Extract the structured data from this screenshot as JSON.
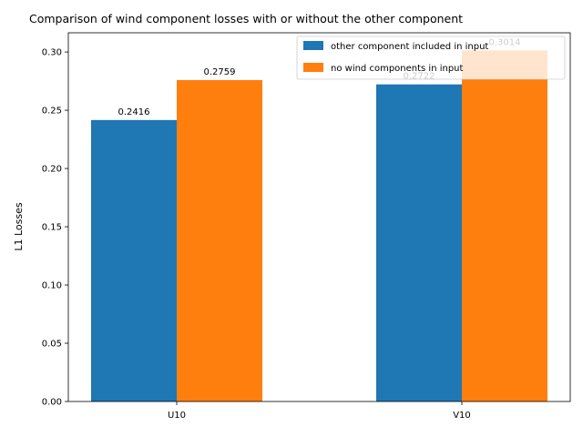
{
  "chart_data": {
    "type": "bar",
    "title": "Comparison of wind component losses with or without the other component",
    "xlabel": "",
    "ylabel": "L1 Losses",
    "categories": [
      "U10",
      "V10"
    ],
    "series": [
      {
        "name": "other component included in input",
        "values": [
          0.2416,
          0.2722
        ],
        "labels": [
          "0.2416",
          "0.2722"
        ],
        "color": "#1f77b4"
      },
      {
        "name": "no wind components in input",
        "values": [
          0.2759,
          0.3014
        ],
        "labels": [
          "0.2759",
          "0.3014"
        ],
        "color": "#ff7f0e"
      }
    ],
    "ylim": [
      0,
      0.3165
    ],
    "yticks": [
      0.0,
      0.05,
      0.1,
      0.15,
      0.2,
      0.25,
      0.3
    ],
    "ytick_labels": [
      "0.00",
      "0.05",
      "0.10",
      "0.15",
      "0.20",
      "0.25",
      "0.30"
    ],
    "grid": false,
    "legend_position": "top-right"
  }
}
